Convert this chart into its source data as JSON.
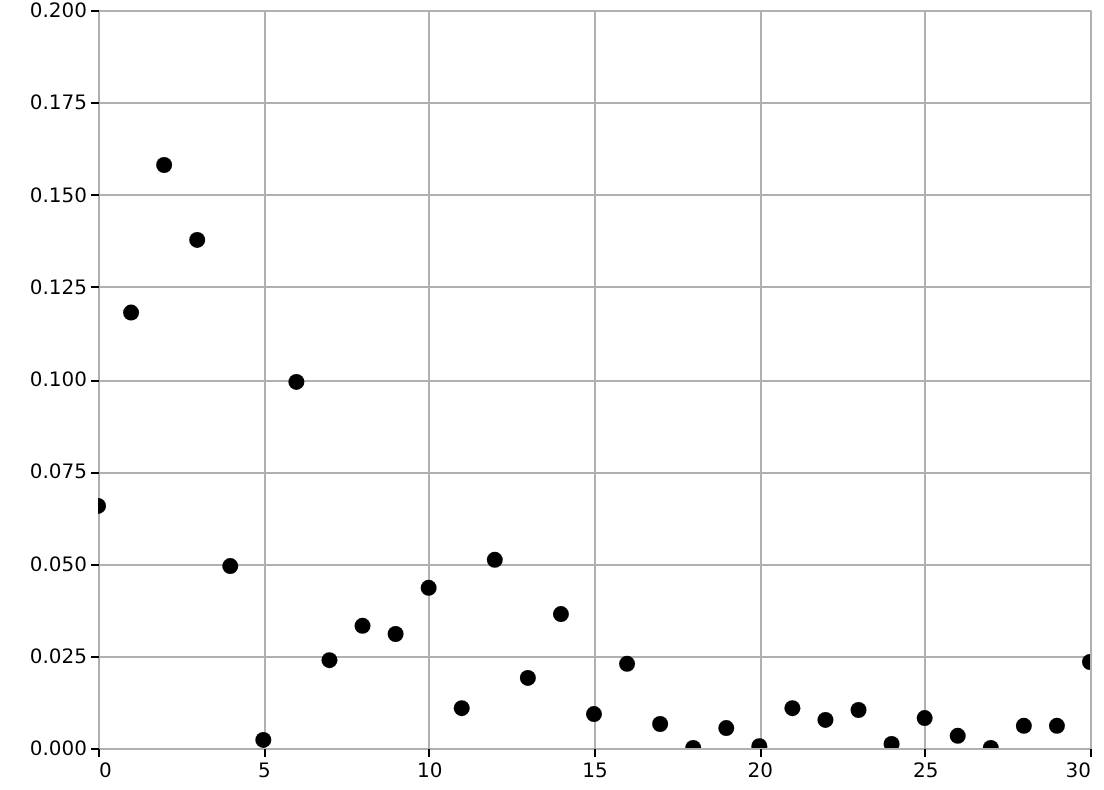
{
  "chart_data": {
    "type": "scatter",
    "x": [
      0,
      1,
      2,
      3,
      4,
      5,
      6,
      7,
      8,
      9,
      10,
      11,
      12,
      13,
      14,
      15,
      16,
      17,
      18,
      19,
      20,
      21,
      22,
      23,
      24,
      25,
      26,
      27,
      28,
      29,
      30
    ],
    "series": [
      {
        "color": "#000000",
        "values": [
          0.0656,
          0.118,
          0.158,
          0.1377,
          0.0493,
          0.0022,
          0.0992,
          0.0238,
          0.0331,
          0.0309,
          0.0434,
          0.0108,
          0.051,
          0.019,
          0.0363,
          0.0092,
          0.0228,
          0.0065,
          0.0,
          0.0054,
          0.0005,
          0.0108,
          0.0076,
          0.0103,
          0.0011,
          0.0081,
          0.0033,
          0.0,
          0.006,
          0.006,
          0.0233
        ]
      }
    ],
    "xlim": [
      0,
      30
    ],
    "xticks": [
      0,
      5,
      10,
      15,
      20,
      25,
      30
    ],
    "ylim": [
      0,
      0.2
    ],
    "yticks": [
      {
        "value": 0,
        "label": "0.000"
      },
      {
        "value": 0.025,
        "label": "0.025"
      },
      {
        "value": 0.05,
        "label": "0.050"
      },
      {
        "value": 0.075,
        "label": "0.075"
      },
      {
        "value": 0.1,
        "label": "0.100"
      },
      {
        "value": 0.125,
        "label": "0.125"
      },
      {
        "value": 0.15,
        "label": "0.150"
      },
      {
        "value": 0.175,
        "label": "0.175"
      },
      {
        "value": 0.2,
        "label": "0.200"
      }
    ],
    "grid": true,
    "marker": "circle"
  }
}
